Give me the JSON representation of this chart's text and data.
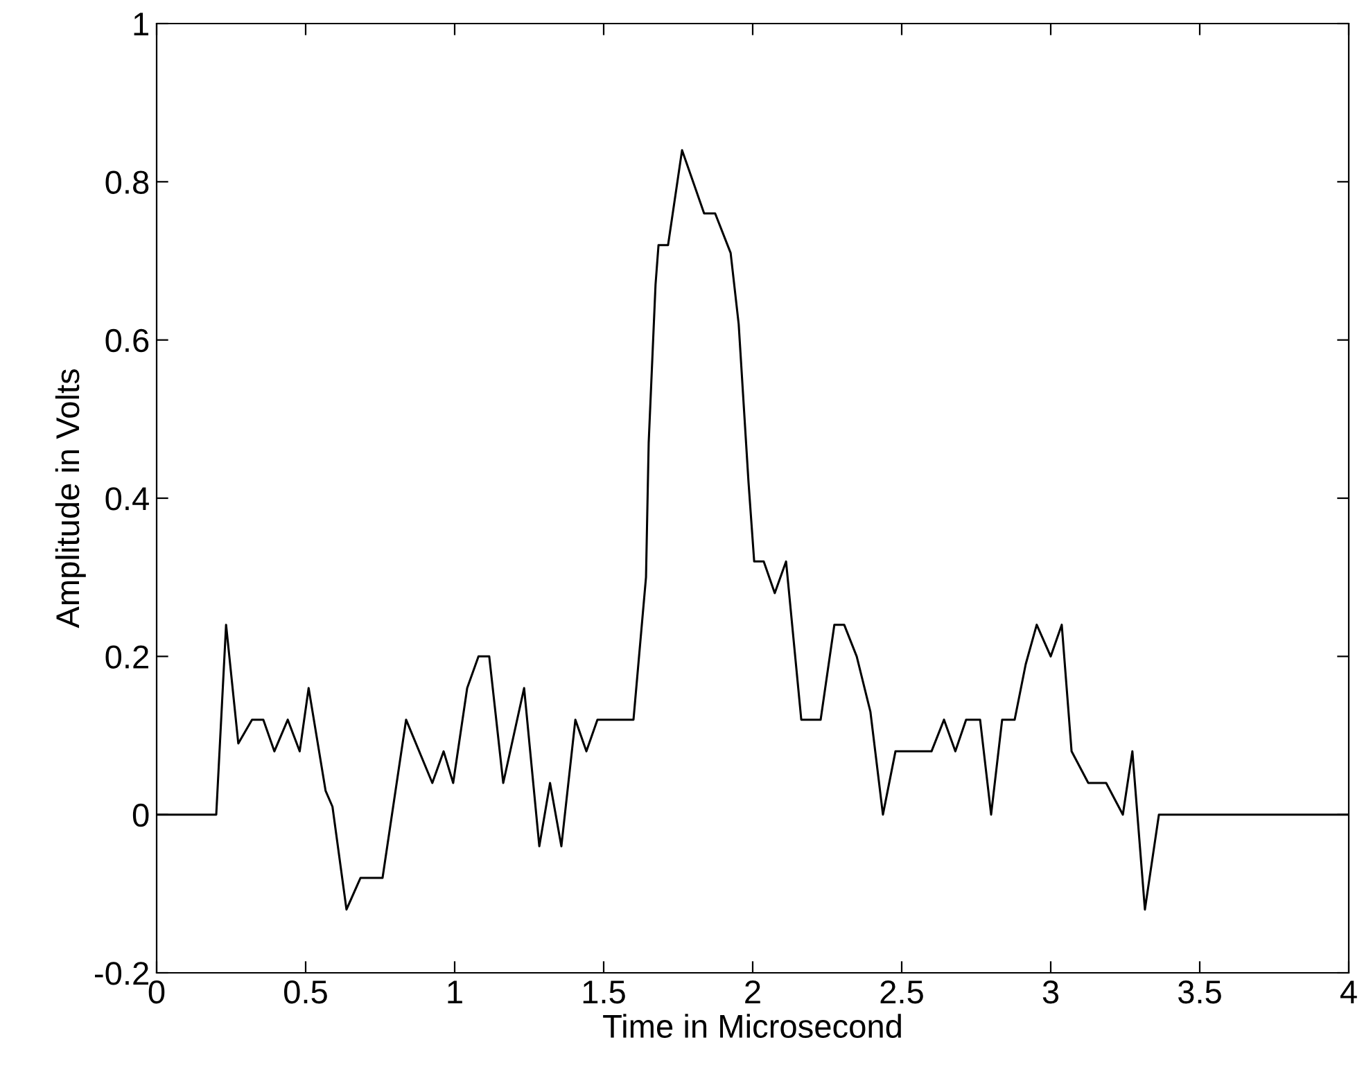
{
  "chart_data": {
    "type": "line",
    "xlabel": "Time in Microsecond",
    "ylabel": "Amplitude in Volts",
    "xlim": [
      0,
      4
    ],
    "ylim": [
      -0.2,
      1
    ],
    "xticks": [
      0,
      0.5,
      1,
      1.5,
      2,
      2.5,
      3,
      3.5,
      4
    ],
    "yticks": [
      -0.2,
      0,
      0.2,
      0.4,
      0.6,
      0.8,
      1
    ],
    "grid": false,
    "series": [
      {
        "color": "#000000",
        "x": [
          0,
          0.2,
          0.233,
          0.274,
          0.32,
          0.358,
          0.395,
          0.44,
          0.48,
          0.51,
          0.567,
          0.59,
          0.637,
          0.684,
          0.758,
          0.837,
          0.925,
          0.963,
          0.995,
          1.042,
          1.08,
          1.116,
          1.163,
          1.233,
          1.284,
          1.32,
          1.358,
          1.405,
          1.442,
          1.479,
          1.6,
          1.642,
          1.651,
          1.674,
          1.684,
          1.716,
          1.763,
          1.837,
          1.874,
          1.926,
          1.953,
          1.986,
          2.005,
          2.037,
          2.074,
          2.112,
          2.163,
          2.228,
          2.274,
          2.307,
          2.349,
          2.395,
          2.437,
          2.479,
          2.6,
          2.642,
          2.68,
          2.716,
          2.763,
          2.8,
          2.837,
          2.879,
          2.916,
          2.953,
          3.0,
          3.037,
          3.07,
          3.126,
          3.186,
          3.242,
          3.274,
          3.316,
          3.363,
          4
        ],
        "values": [
          0,
          0,
          0.24,
          0.09,
          0.12,
          0.12,
          0.08,
          0.12,
          0.08,
          0.16,
          0.03,
          0.01,
          -0.12,
          -0.08,
          -0.08,
          0.12,
          0.04,
          0.08,
          0.04,
          0.16,
          0.2,
          0.2,
          0.04,
          0.16,
          -0.04,
          0.04,
          -0.04,
          0.12,
          0.08,
          0.12,
          0.12,
          0.3,
          0.47,
          0.67,
          0.72,
          0.72,
          0.84,
          0.76,
          0.76,
          0.71,
          0.62,
          0.42,
          0.32,
          0.32,
          0.28,
          0.32,
          0.12,
          0.12,
          0.24,
          0.24,
          0.2,
          0.13,
          0,
          0.08,
          0.08,
          0.12,
          0.08,
          0.12,
          0.12,
          0,
          0.12,
          0.12,
          0.19,
          0.24,
          0.2,
          0.24,
          0.08,
          0.04,
          0.04,
          0,
          0.08,
          -0.12,
          0,
          0
        ]
      }
    ]
  }
}
